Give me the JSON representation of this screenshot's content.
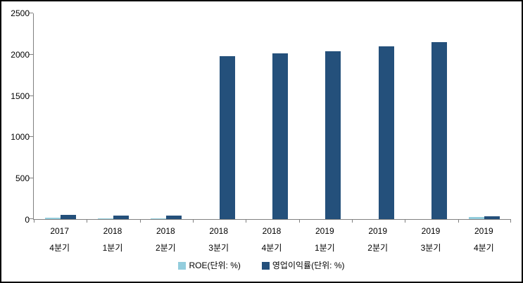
{
  "window": {
    "background": "#ffffff",
    "border_color": "#000000",
    "axis_color": "#808080",
    "text_color": "#000000"
  },
  "chart_data": {
    "type": "bar",
    "title": "",
    "xlabel": "",
    "ylabel": "",
    "categories": [
      [
        "2017",
        "4분기"
      ],
      [
        "2018",
        "1분기"
      ],
      [
        "2018",
        "2분기"
      ],
      [
        "2018",
        "3분기"
      ],
      [
        "2018",
        "4분기"
      ],
      [
        "2019",
        "1분기"
      ],
      [
        "2019",
        "2분기"
      ],
      [
        "2019",
        "3분기"
      ],
      [
        "2019",
        "4분기"
      ]
    ],
    "series": [
      {
        "name": "ROE(단위: %)",
        "color": "#93cddd",
        "values": [
          15,
          10,
          12,
          0,
          0,
          0,
          0,
          0,
          25
        ]
      },
      {
        "name": "영업이익률(단위: %)",
        "color": "#24507b",
        "values": [
          55,
          45,
          40,
          1970,
          2010,
          2030,
          2090,
          2140,
          30
        ]
      }
    ],
    "ylim": [
      0,
      2500
    ],
    "y_ticks": [
      0,
      500,
      1000,
      1500,
      2000,
      2500
    ],
    "grid": false,
    "legend_position": "bottom"
  }
}
